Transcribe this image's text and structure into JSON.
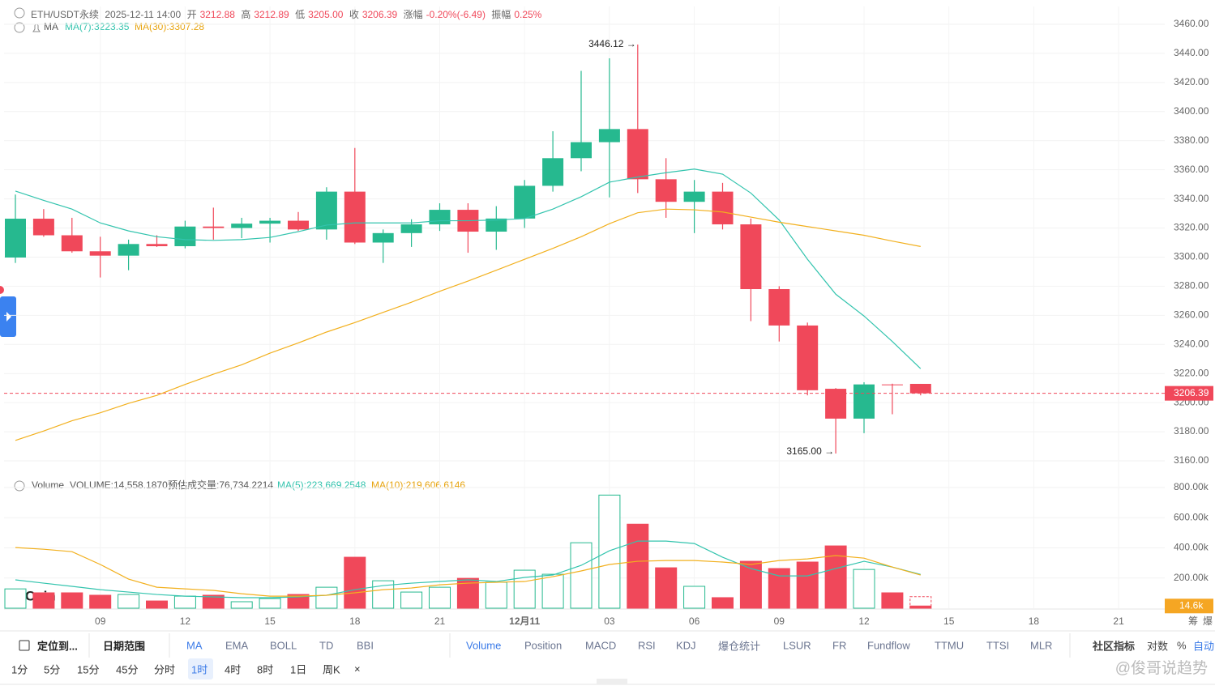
{
  "chart_data": {
    "type": "candlestick",
    "header": {
      "symbol": "ETH/USDT永续",
      "time": "2025-12-11 14:00",
      "fields": [
        {
          "label": "开",
          "value": "3212.88"
        },
        {
          "label": "高",
          "value": "3212.89"
        },
        {
          "label": "低",
          "value": "3205.00"
        },
        {
          "label": "收",
          "value": "3206.39"
        },
        {
          "label": "涨幅",
          "value": "-0.20%(-6.49)"
        },
        {
          "label": "振幅",
          "value": "0.25%"
        }
      ]
    },
    "legend_title": "MA",
    "up_color": "#26b98f",
    "down_color": "#f0485a",
    "categories": [
      null,
      null,
      null,
      "09",
      null,
      null,
      "12",
      null,
      null,
      "15",
      null,
      null,
      "18",
      null,
      null,
      "21",
      null,
      null,
      "12月11",
      null,
      null,
      "03",
      null,
      null,
      "06",
      null,
      null,
      "09",
      null,
      null,
      "12",
      null,
      null,
      "15",
      null,
      null,
      "18",
      null,
      null,
      "21",
      null
    ],
    "open": [
      3299.7,
      3326.4,
      3315,
      3304,
      3301,
      3309,
      3307.5,
      3321,
      3320,
      3323,
      3325,
      3319,
      3345,
      3310,
      3316.5,
      3322.5,
      3332.5,
      3317.5,
      3326.5,
      3349,
      3368,
      3379,
      3388,
      3353.5,
      3338,
      3345,
      3322.5,
      3278,
      3253,
      3209.5,
      3189,
      3212.5,
      3212.88,
      null,
      null,
      null,
      null,
      null,
      null,
      null,
      null
    ],
    "high": [
      3343,
      3333,
      3327,
      3314,
      3312,
      3315,
      3325,
      3334,
      3327,
      3327,
      3331,
      3348,
      3375,
      3319,
      3326,
      3337,
      3337,
      3335,
      3353,
      3386.5,
      3428,
      3436.6,
      3446.12,
      3368,
      3353,
      3351,
      3326.5,
      3280,
      3255,
      3210,
      3214,
      3213,
      3212.89,
      null,
      null,
      null,
      null,
      null,
      null,
      null,
      null
    ],
    "low": [
      3296,
      3314,
      3303,
      3286,
      3291,
      3307,
      3306,
      3312,
      3313,
      3310,
      3318,
      3312,
      3309,
      3296,
      3307,
      3318,
      3303,
      3305,
      3320,
      3345,
      3359,
      3341,
      3344,
      3327,
      3316.5,
      3319,
      3256,
      3242,
      3205,
      3165,
      3179,
      3192,
      3205,
      null,
      null,
      null,
      null,
      null,
      null,
      null,
      null
    ],
    "close": [
      3326.4,
      3315,
      3304,
      3301,
      3309,
      3307.5,
      3321,
      3320,
      3323,
      3325,
      3319,
      3345,
      3310,
      3316.5,
      3322.5,
      3332.5,
      3317.5,
      3326.5,
      3349,
      3368,
      3379,
      3388,
      3353.5,
      3338,
      3345,
      3322.5,
      3278,
      3253,
      3208.5,
      3189,
      3212.5,
      3212,
      3206.39,
      null,
      null,
      null,
      null,
      null,
      null,
      null,
      null
    ],
    "series": [
      {
        "name": "MA(7):3223.35",
        "color": "#33c4ae",
        "values": [
          3345.4,
          3339,
          3333,
          3323.5,
          3318,
          3314,
          3312,
          3311.5,
          3312,
          3313.5,
          3317.5,
          3322,
          3323.5,
          3323.5,
          3323.5,
          3325,
          3325,
          3325.5,
          3326.5,
          3333,
          3341.5,
          3351.5,
          3355,
          3358,
          3360.5,
          3357,
          3344,
          3325.5,
          3298.5,
          3274.5,
          3259.5,
          3242,
          3223.35,
          null,
          null,
          null,
          null,
          null,
          null,
          null,
          null
        ]
      },
      {
        "name": "MA(30):3307.28",
        "color": "#f2b01e",
        "values": [
          3174,
          3180.5,
          3187.5,
          3193,
          3199.5,
          3205,
          3212.5,
          3219.5,
          3226,
          3234,
          3241,
          3248.5,
          3255,
          3262,
          3269,
          3276.5,
          3283.5,
          3291,
          3298.5,
          3306,
          3314,
          3323,
          3330.5,
          3333,
          3332.5,
          3331,
          3327.5,
          3324,
          3321,
          3318,
          3315,
          3311,
          3307.28,
          null,
          null,
          null,
          null,
          null,
          null,
          null,
          null
        ]
      }
    ],
    "ylim": [
      3160,
      3460
    ],
    "yticks": [
      {
        "value": 3160,
        "label": "3160.00"
      },
      {
        "value": 3180,
        "label": "3180.00"
      },
      {
        "value": 3200,
        "label": "3200.00"
      },
      {
        "value": 3220,
        "label": "3220.00"
      },
      {
        "value": 3240,
        "label": "3240.00"
      },
      {
        "value": 3260,
        "label": "3260.00"
      },
      {
        "value": 3280,
        "label": "3280.00"
      },
      {
        "value": 3300,
        "label": "3300.00"
      },
      {
        "value": 3320,
        "label": "3320.00"
      },
      {
        "value": 3340,
        "label": "3340.00"
      },
      {
        "value": 3360,
        "label": "3360.00"
      },
      {
        "value": 3380,
        "label": "3380.00"
      },
      {
        "value": 3400,
        "label": "3400.00"
      },
      {
        "value": 3420,
        "label": "3420.00"
      },
      {
        "value": 3440,
        "label": "3440.00"
      },
      {
        "value": 3460,
        "label": "3460.00"
      }
    ],
    "last_label": "3206.39",
    "annotations": [
      "3446.12 →",
      "3165.00 →"
    ],
    "grid": true,
    "volume": {
      "title": "Volume",
      "readout": "VOLUME:14,558.1870",
      "estimate_label": "预估成交量:76,734.2214",
      "estimate": 76734.2214,
      "values": [
        128000,
        102000,
        102000,
        86000,
        91000,
        48000,
        80000,
        86000,
        43000,
        64000,
        91000,
        139000,
        338000,
        182000,
        107000,
        139000,
        198000,
        172000,
        252000,
        225000,
        434000,
        750000,
        557000,
        268000,
        145000,
        70000,
        311000,
        263000,
        306000,
        413000,
        257000,
        102000,
        14558.187,
        null,
        null,
        null,
        null,
        null,
        null,
        null,
        null
      ],
      "series": [
        {
          "name": "MA(5):223,669.2548",
          "color": "#33c4ae",
          "values": [
            188000,
            166000,
            145000,
            123000,
            107000,
            91000,
            80000,
            75000,
            70000,
            70000,
            75000,
            86000,
            123000,
            150000,
            166000,
            177000,
            188000,
            177000,
            204000,
            220000,
            284000,
            381000,
            445000,
            445000,
            429000,
            338000,
            263000,
            214000,
            214000,
            263000,
            311000,
            273000,
            223669.2548,
            null,
            null,
            null,
            null,
            null,
            null,
            null,
            null
          ]
        },
        {
          "name": "MA(10):219,606.6146",
          "color": "#f2b01e",
          "values": [
            402000,
            391000,
            375000,
            290000,
            193000,
            139000,
            128000,
            118000,
            96000,
            80000,
            80000,
            86000,
            102000,
            123000,
            134000,
            155000,
            166000,
            172000,
            177000,
            209000,
            247000,
            290000,
            311000,
            316000,
            316000,
            306000,
            290000,
            316000,
            327000,
            349000,
            332000,
            273000,
            219606.6146,
            null,
            null,
            null,
            null,
            null,
            null,
            null,
            null
          ]
        }
      ],
      "ylim": [
        0,
        800000
      ],
      "yticks": [
        {
          "value": 200000,
          "label": "200.00k"
        },
        {
          "value": 400000,
          "label": "400.00k"
        },
        {
          "value": 600000,
          "label": "600.00k"
        },
        {
          "value": 800000,
          "label": "800.00k"
        }
      ],
      "last_label": "14.6k"
    },
    "axis_footer": [
      "筹",
      "爆"
    ],
    "logo": "AiCoin",
    "toolbar": {
      "locate": "定位到...",
      "range": "日期范围",
      "main": [
        "MA",
        "EMA",
        "BOLL",
        "TD",
        "BBI"
      ],
      "sub": [
        "Volume",
        "Position",
        "MACD",
        "RSI",
        "KDJ",
        "爆仓统计",
        "LSUR",
        "FR",
        "Fundflow",
        "TTMU",
        "TTSI",
        "MLR"
      ],
      "community": "社区指标",
      "right": [
        "对数",
        "%",
        "自动"
      ],
      "intervals": [
        "1分",
        "5分",
        "15分",
        "45分",
        "分时",
        "1时",
        "4时",
        "8时",
        "1日",
        "周K"
      ],
      "close": "×"
    },
    "watermark": "@俊哥说趋势"
  }
}
